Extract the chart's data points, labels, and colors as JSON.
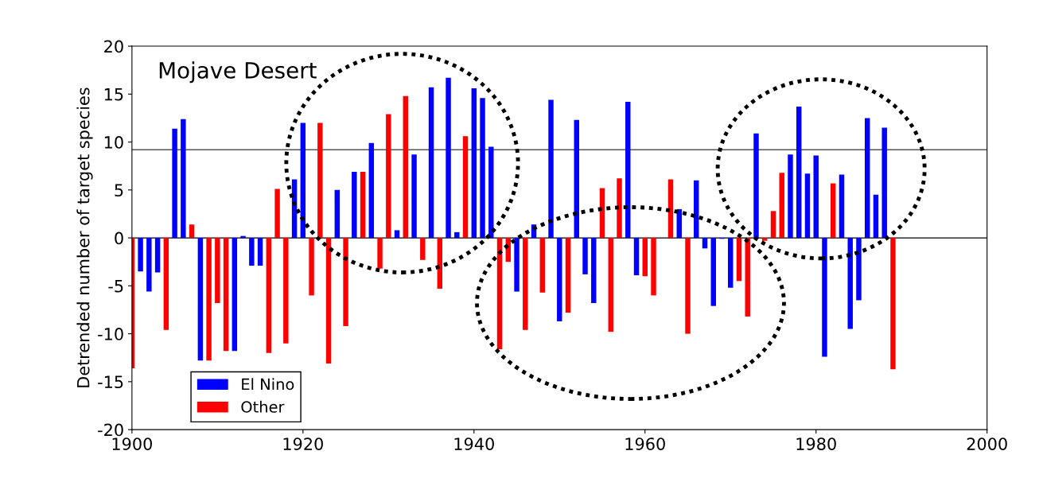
{
  "chart_data": {
    "type": "bar",
    "title": "Mojave Desert",
    "ylabel": "Detrended number of target species",
    "xlim": [
      1900,
      2000
    ],
    "xticks": [
      1900,
      1920,
      1940,
      1960,
      1980,
      2000
    ],
    "ylim": [
      -20,
      20
    ],
    "yticks": [
      -20,
      -15,
      -10,
      -5,
      0,
      5,
      10,
      15,
      20
    ],
    "grid": false,
    "legend": "bottom left",
    "ref_lines": [
      {
        "axis": "y",
        "value": 0,
        "color": "#000000"
      },
      {
        "axis": "y",
        "value": 9.2,
        "color": "#555555"
      }
    ],
    "series": [
      {
        "name": "El Nino",
        "color": "#0000ff",
        "x": [
          1901,
          1902,
          1903,
          1905,
          1906,
          1908,
          1912,
          1913,
          1914,
          1915,
          1919,
          1920,
          1924,
          1926,
          1928,
          1931,
          1933,
          1935,
          1937,
          1938,
          1940,
          1941,
          1942,
          1945,
          1947,
          1949,
          1950,
          1952,
          1953,
          1954,
          1958,
          1959,
          1964,
          1966,
          1967,
          1968,
          1969,
          1970,
          1973,
          1977,
          1978,
          1979,
          1980,
          1981,
          1983,
          1984,
          1985,
          1986,
          1987,
          1988
        ],
        "values": [
          -3.5,
          -5.6,
          -3.6,
          11.4,
          12.4,
          -12.8,
          -11.8,
          0.2,
          -2.9,
          -2.9,
          6.1,
          12.0,
          5.0,
          6.9,
          9.9,
          0.8,
          8.7,
          15.7,
          16.7,
          0.6,
          15.6,
          14.6,
          9.5,
          -5.6,
          1.4,
          14.4,
          -8.7,
          12.3,
          -3.8,
          -6.8,
          14.2,
          -3.9,
          3.0,
          6.0,
          -1.1,
          -7.1,
          -0.1,
          -5.2,
          10.9,
          8.7,
          13.7,
          6.7,
          8.6,
          -12.4,
          6.6,
          -9.5,
          -6.5,
          12.5,
          4.5,
          11.5
        ]
      },
      {
        "name": "Other",
        "color": "#ff0000",
        "x": [
          1900,
          1904,
          1907,
          1909,
          1910,
          1911,
          1916,
          1917,
          1918,
          1921,
          1922,
          1923,
          1925,
          1927,
          1929,
          1930,
          1932,
          1934,
          1936,
          1939,
          1943,
          1944,
          1946,
          1948,
          1951,
          1955,
          1956,
          1957,
          1960,
          1961,
          1963,
          1965,
          1971,
          1972,
          1974,
          1975,
          1976,
          1982,
          1989
        ],
        "values": [
          -13.6,
          -9.6,
          1.4,
          -12.8,
          -6.8,
          -11.8,
          -12.0,
          5.1,
          -11.0,
          -6.0,
          12.0,
          -13.1,
          -9.2,
          6.9,
          -3.2,
          12.9,
          14.8,
          -2.3,
          -5.3,
          10.6,
          -11.6,
          -2.5,
          -9.6,
          -5.7,
          -7.8,
          5.2,
          -9.8,
          6.2,
          -4.0,
          -6.0,
          6.1,
          -10.0,
          -4.5,
          -8.2,
          -0.3,
          2.8,
          6.8,
          5.7,
          -13.7
        ]
      }
    ]
  }
}
